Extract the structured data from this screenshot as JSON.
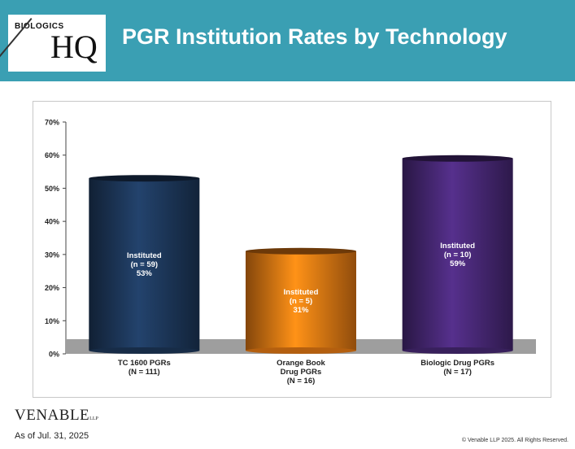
{
  "header": {
    "title": "PGR Institution Rates by Technology",
    "logo_small": "BIOLOGICS",
    "logo_big": "HQ"
  },
  "footer": {
    "brand": "VENABLE",
    "brand_suffix": "LLP",
    "as_of": "As of Jul. 31, 2025",
    "copyright": "© Venable LLP 2025. All Rights Reserved."
  },
  "colors": {
    "header_bg": "#3a9fb3",
    "bar_1": "#1e3a5f",
    "bar_2": "#f07f14",
    "bar_3": "#4b2a7b",
    "floor": "#9e9e9e"
  },
  "chart_data": {
    "type": "bar",
    "title": "PGR Institution Rates by Technology",
    "xlabel": "",
    "ylabel": "",
    "ylim": [
      0,
      70
    ],
    "yticks": [
      "0%",
      "10%",
      "20%",
      "30%",
      "40%",
      "50%",
      "60%",
      "70%"
    ],
    "grid": false,
    "categories": [
      [
        "TC 1600 PGRs",
        "(N = 111)"
      ],
      [
        "Orange Book",
        "Drug PGRs",
        "(N = 16)"
      ],
      [
        "Biologic Drug PGRs",
        "(N = 17)"
      ]
    ],
    "values": [
      53,
      31,
      59
    ],
    "data_labels": [
      [
        "Instituted",
        "(n = 59)",
        "53%"
      ],
      [
        "Instituted",
        "(n = 5)",
        "31%"
      ],
      [
        "Instituted",
        "(n = 10)",
        "59%"
      ]
    ]
  }
}
